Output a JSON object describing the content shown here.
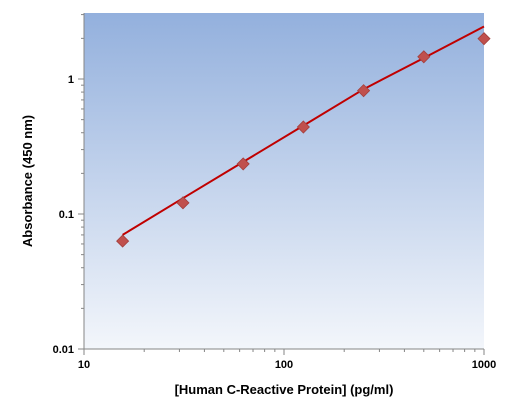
{
  "chart_data": {
    "type": "scatter",
    "title": "",
    "xlabel": "[Human C-Reactive Protein] (pg/ml)",
    "ylabel": "Absorbance (450 nm)",
    "xscale": "log",
    "yscale": "log",
    "xlim": [
      10,
      1000
    ],
    "ylim": [
      0.01,
      3
    ],
    "x_ticks": [
      10,
      100,
      1000
    ],
    "x_tick_labels": [
      "10",
      "100",
      "1000"
    ],
    "y_ticks": [
      0.01,
      0.1,
      1
    ],
    "y_tick_labels": [
      "0.01",
      "0.1",
      "1"
    ],
    "grid": false,
    "legend": "none",
    "series": [
      {
        "kind": "points",
        "marker": "diamond",
        "x": [
          15.6,
          31.25,
          62.5,
          125,
          250,
          500,
          1000
        ],
        "y": [
          0.063,
          0.121,
          0.235,
          0.441,
          0.82,
          1.46,
          1.99
        ]
      },
      {
        "kind": "fit-line",
        "x": [
          15.6,
          31.25,
          62.5,
          125,
          250,
          500,
          1000
        ],
        "y": [
          0.07,
          0.131,
          0.243,
          0.452,
          0.84,
          1.43,
          2.45
        ]
      }
    ],
    "colors": {
      "marker": "#c0504d",
      "line": "#c00000",
      "plot_bg_top": "#93b0dd",
      "plot_bg_bottom": "#f3f6fb"
    }
  }
}
